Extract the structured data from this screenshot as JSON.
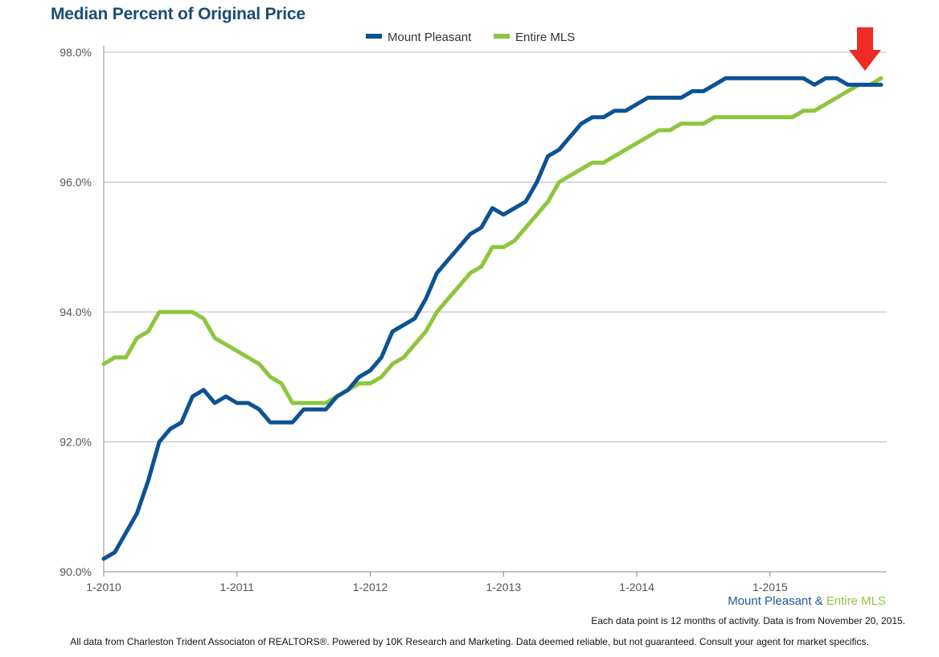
{
  "chart_data": {
    "type": "line",
    "title": "Median Percent of Original Price",
    "xlabel": "",
    "ylabel": "",
    "ylim": [
      90.0,
      98.0
    ],
    "yticks": [
      90.0,
      92.0,
      94.0,
      96.0,
      98.0
    ],
    "ytick_labels": [
      "90.0%",
      "92.0%",
      "94.0%",
      "96.0%",
      "98.0%"
    ],
    "xtick_labels": [
      "1-2010",
      "1-2011",
      "1-2012",
      "1-2013",
      "1-2014",
      "1-2015"
    ],
    "xtick_month_index": [
      0,
      12,
      24,
      36,
      48,
      60
    ],
    "x_count": 71,
    "grid": true,
    "legend_position": "top-center",
    "series": [
      {
        "name": "Mount Pleasant",
        "color": "#0d5293",
        "values": [
          90.2,
          90.3,
          90.6,
          90.9,
          91.4,
          92.0,
          92.2,
          92.3,
          92.7,
          92.8,
          92.6,
          92.7,
          92.6,
          92.6,
          92.5,
          92.3,
          92.3,
          92.3,
          92.5,
          92.5,
          92.5,
          92.7,
          92.8,
          93.0,
          93.1,
          93.3,
          93.7,
          93.8,
          93.9,
          94.2,
          94.6,
          94.8,
          95.0,
          95.2,
          95.3,
          95.6,
          95.5,
          95.6,
          95.7,
          96.0,
          96.4,
          96.5,
          96.7,
          96.9,
          97.0,
          97.0,
          97.1,
          97.1,
          97.2,
          97.3,
          97.3,
          97.3,
          97.3,
          97.4,
          97.4,
          97.5,
          97.6,
          97.6,
          97.6,
          97.6,
          97.6,
          97.6,
          97.6,
          97.6,
          97.5,
          97.6,
          97.6,
          97.5,
          97.5,
          97.5,
          97.5
        ]
      },
      {
        "name": "Entire MLS",
        "color": "#8cc63e",
        "values": [
          93.2,
          93.3,
          93.3,
          93.6,
          93.7,
          94.0,
          94.0,
          94.0,
          94.0,
          93.9,
          93.6,
          93.5,
          93.4,
          93.3,
          93.2,
          93.0,
          92.9,
          92.6,
          92.6,
          92.6,
          92.6,
          92.7,
          92.8,
          92.9,
          92.9,
          93.0,
          93.2,
          93.3,
          93.5,
          93.7,
          94.0,
          94.2,
          94.4,
          94.6,
          94.7,
          95.0,
          95.0,
          95.1,
          95.3,
          95.5,
          95.7,
          96.0,
          96.1,
          96.2,
          96.3,
          96.3,
          96.4,
          96.5,
          96.6,
          96.7,
          96.8,
          96.8,
          96.9,
          96.9,
          96.9,
          97.0,
          97.0,
          97.0,
          97.0,
          97.0,
          97.0,
          97.0,
          97.0,
          97.1,
          97.1,
          97.2,
          97.3,
          97.4,
          97.5,
          97.5,
          97.6
        ]
      }
    ],
    "annotations": [
      "red down arrow marking the latest data point"
    ]
  },
  "caption": {
    "mount_pleasant": "Mount Pleasant",
    "ampersand": "&",
    "entire_mls": "Entire MLS"
  },
  "data_note": "Each data point is 12 months of activity. Data is from November 20, 2015.",
  "footer": "All data from Charleston Trident Associaton of REALTORS®. Powered by 10K Research and Marketing. Data deemed reliable, but not guaranteed. Consult your agent for market specifics."
}
